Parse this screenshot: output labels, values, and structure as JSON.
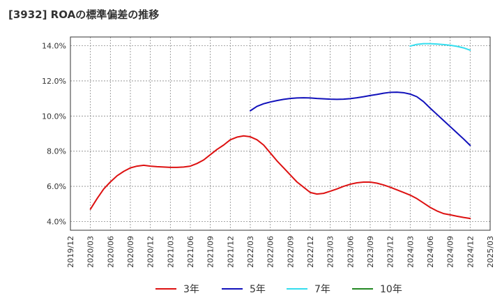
{
  "chart_data": {
    "type": "line",
    "title": "[3932]  ROAの標準偏差の推移",
    "xlabel": "",
    "ylabel": "",
    "ylim": [
      3.5,
      14.5
    ],
    "yticks": [
      4.0,
      6.0,
      8.0,
      10.0,
      12.0,
      14.0
    ],
    "ytick_labels": [
      "4.0%",
      "6.0%",
      "8.0%",
      "10.0%",
      "12.0%",
      "14.0%"
    ],
    "x_categories": [
      "2019/12",
      "2020/03",
      "2020/06",
      "2020/09",
      "2020/12",
      "2021/03",
      "2021/06",
      "2021/09",
      "2021/12",
      "2022/03",
      "2022/06",
      "2022/09",
      "2022/12",
      "2023/03",
      "2023/06",
      "2023/09",
      "2023/12",
      "2024/03",
      "2024/06",
      "2024/09",
      "2024/12",
      "2025/03"
    ],
    "grid": true,
    "legend_position": "bottom",
    "series": [
      {
        "name": "3年",
        "color": "#dd1111",
        "points": [
          [
            "2020/03",
            4.7
          ],
          [
            "2020/04",
            5.3
          ],
          [
            "2020/05",
            5.85
          ],
          [
            "2020/06",
            6.25
          ],
          [
            "2020/07",
            6.6
          ],
          [
            "2020/08",
            6.85
          ],
          [
            "2020/09",
            7.05
          ],
          [
            "2020/10",
            7.15
          ],
          [
            "2020/11",
            7.2
          ],
          [
            "2020/12",
            7.15
          ],
          [
            "2021/01",
            7.12
          ],
          [
            "2021/02",
            7.1
          ],
          [
            "2021/03",
            7.08
          ],
          [
            "2021/04",
            7.08
          ],
          [
            "2021/05",
            7.1
          ],
          [
            "2021/06",
            7.15
          ],
          [
            "2021/07",
            7.3
          ],
          [
            "2021/08",
            7.5
          ],
          [
            "2021/09",
            7.8
          ],
          [
            "2021/10",
            8.1
          ],
          [
            "2021/11",
            8.35
          ],
          [
            "2021/12",
            8.65
          ],
          [
            "2022/01",
            8.8
          ],
          [
            "2022/02",
            8.87
          ],
          [
            "2022/03",
            8.82
          ],
          [
            "2022/04",
            8.65
          ],
          [
            "2022/05",
            8.35
          ],
          [
            "2022/06",
            7.9
          ],
          [
            "2022/07",
            7.45
          ],
          [
            "2022/08",
            7.05
          ],
          [
            "2022/09",
            6.65
          ],
          [
            "2022/10",
            6.25
          ],
          [
            "2022/11",
            5.95
          ],
          [
            "2022/12",
            5.65
          ],
          [
            "2023/01",
            5.56
          ],
          [
            "2023/02",
            5.6
          ],
          [
            "2023/03",
            5.72
          ],
          [
            "2023/04",
            5.85
          ],
          [
            "2023/05",
            6.0
          ],
          [
            "2023/06",
            6.12
          ],
          [
            "2023/07",
            6.2
          ],
          [
            "2023/08",
            6.24
          ],
          [
            "2023/09",
            6.24
          ],
          [
            "2023/10",
            6.18
          ],
          [
            "2023/11",
            6.08
          ],
          [
            "2023/12",
            5.95
          ],
          [
            "2024/01",
            5.8
          ],
          [
            "2024/02",
            5.65
          ],
          [
            "2024/03",
            5.5
          ],
          [
            "2024/04",
            5.3
          ],
          [
            "2024/05",
            5.05
          ],
          [
            "2024/06",
            4.8
          ],
          [
            "2024/07",
            4.6
          ],
          [
            "2024/08",
            4.45
          ],
          [
            "2024/09",
            4.38
          ],
          [
            "2024/10",
            4.3
          ],
          [
            "2024/11",
            4.23
          ],
          [
            "2024/12",
            4.17
          ]
        ]
      },
      {
        "name": "5年",
        "color": "#1111bb",
        "points": [
          [
            "2022/03",
            10.3
          ],
          [
            "2022/04",
            10.55
          ],
          [
            "2022/05",
            10.7
          ],
          [
            "2022/06",
            10.8
          ],
          [
            "2022/07",
            10.88
          ],
          [
            "2022/08",
            10.95
          ],
          [
            "2022/09",
            11.0
          ],
          [
            "2022/10",
            11.03
          ],
          [
            "2022/11",
            11.04
          ],
          [
            "2022/12",
            11.03
          ],
          [
            "2023/01",
            11.0
          ],
          [
            "2023/02",
            10.98
          ],
          [
            "2023/03",
            10.96
          ],
          [
            "2023/04",
            10.95
          ],
          [
            "2023/05",
            10.96
          ],
          [
            "2023/06",
            10.99
          ],
          [
            "2023/07",
            11.04
          ],
          [
            "2023/08",
            11.1
          ],
          [
            "2023/09",
            11.17
          ],
          [
            "2023/10",
            11.23
          ],
          [
            "2023/11",
            11.3
          ],
          [
            "2023/12",
            11.35
          ],
          [
            "2024/01",
            11.36
          ],
          [
            "2024/02",
            11.33
          ],
          [
            "2024/03",
            11.25
          ],
          [
            "2024/04",
            11.1
          ],
          [
            "2024/05",
            10.82
          ],
          [
            "2024/06",
            10.45
          ],
          [
            "2024/07",
            10.1
          ],
          [
            "2024/08",
            9.75
          ],
          [
            "2024/09",
            9.4
          ],
          [
            "2024/10",
            9.05
          ],
          [
            "2024/11",
            8.7
          ],
          [
            "2024/12",
            8.33
          ]
        ]
      },
      {
        "name": "7年",
        "color": "#33ddee",
        "points": [
          [
            "2024/03",
            13.98
          ],
          [
            "2024/04",
            14.08
          ],
          [
            "2024/05",
            14.12
          ],
          [
            "2024/06",
            14.12
          ],
          [
            "2024/07",
            14.1
          ],
          [
            "2024/08",
            14.07
          ],
          [
            "2024/09",
            14.03
          ],
          [
            "2024/10",
            13.97
          ],
          [
            "2024/11",
            13.88
          ],
          [
            "2024/12",
            13.75
          ]
        ]
      },
      {
        "name": "10年",
        "color": "#228822",
        "points": []
      }
    ]
  }
}
